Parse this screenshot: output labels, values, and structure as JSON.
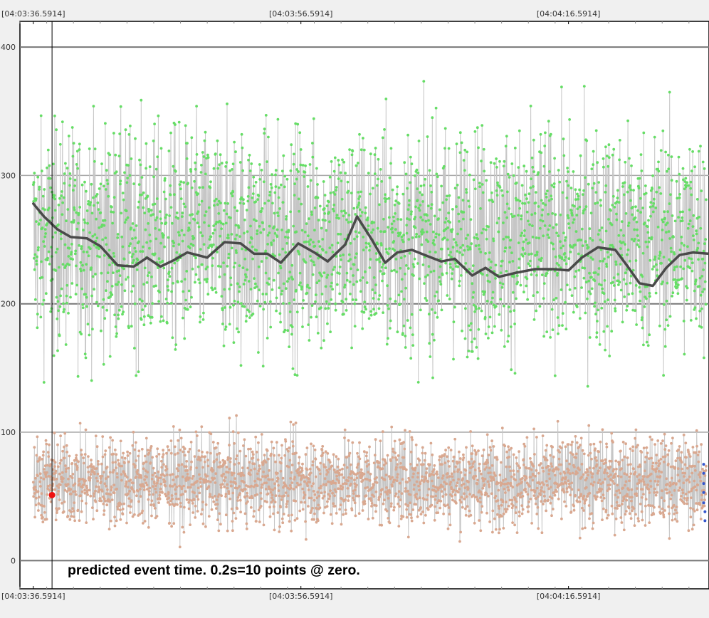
{
  "chart_data": {
    "type": "line",
    "x_ticks_top": [
      "[04:03:36.5914]",
      "[04:03:56.5914]",
      "[04:04:16.5914]"
    ],
    "x_ticks_bottom": [
      "[04:03:36.5914]",
      "[04:03:56.5914]",
      "[04:04:16.5914]"
    ],
    "x_tick_seconds": [
      0,
      20,
      40
    ],
    "x_range_seconds": [
      -1,
      50.5
    ],
    "y_ticks": [
      0,
      100,
      200,
      300,
      400
    ],
    "ylim": [
      -22,
      420
    ],
    "grid": true,
    "event_marker_seconds": 1.4,
    "annotation": "predicted event time. 0.2s=10 points @ zero.",
    "series": [
      {
        "color": "#66dd66",
        "line_color": "#c6c6c6",
        "sample_rate_per_s": 50,
        "mean": 250,
        "spread": 42,
        "min": 120,
        "max": 405
      },
      {
        "color": "#d9a890",
        "line_color": "#c6c6c6",
        "sample_rate_per_s": 50,
        "mean": 62,
        "spread": 17,
        "min": 5,
        "max": 125
      },
      {
        "color": "#4a4a4a",
        "style": "moving-average",
        "x": [
          0,
          0.8,
          1.8,
          2.8,
          4,
          5,
          6.3,
          7.5,
          8.5,
          9.5,
          10.5,
          11.5,
          13,
          14.3,
          15.5,
          16.5,
          17.5,
          18.5,
          19.8,
          21,
          22,
          23.3,
          24.2,
          25.3,
          26.3,
          27.2,
          28.3,
          29.5,
          30.5,
          31.5,
          32.8,
          33.8,
          34.8,
          36,
          37.5,
          38.8,
          40,
          41,
          42.2,
          43.5,
          44.5,
          45.3,
          46.3,
          47.3,
          48.3,
          49.3,
          50.5
        ],
        "y": [
          278,
          268,
          258,
          252,
          251,
          245,
          230,
          229,
          236,
          229,
          234,
          240,
          236,
          248,
          247,
          239,
          239,
          232,
          247,
          240,
          233,
          246,
          268,
          250,
          232,
          240,
          242,
          237,
          233,
          235,
          222,
          228,
          221,
          224,
          227,
          227,
          226,
          236,
          244,
          242,
          228,
          216,
          214,
          228,
          238,
          240,
          239
        ]
      },
      {
        "color": "#ee1111",
        "style": "marker",
        "x": [
          1.4
        ],
        "y": [
          51
        ]
      },
      {
        "color": "#3355cc",
        "style": "small-markers",
        "x": [
          50.1,
          50.1,
          50.1,
          50.1,
          50.1,
          50.2,
          50.2
        ],
        "y": [
          75,
          68,
          60,
          53,
          45,
          38,
          31
        ]
      }
    ]
  }
}
